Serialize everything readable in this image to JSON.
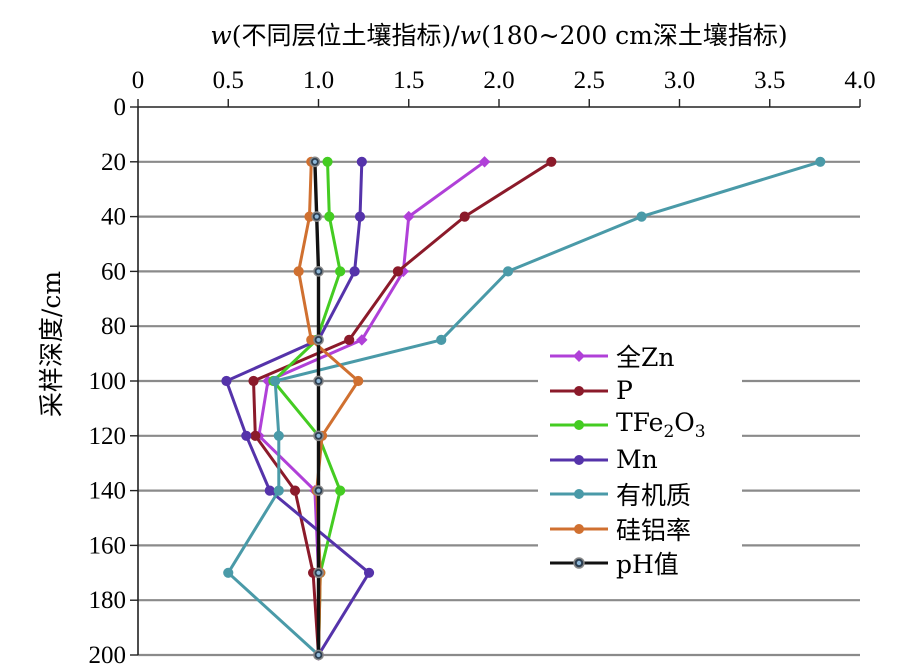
{
  "title": {
    "w1": "w",
    "mid": "(不同层位土壤指标)/",
    "w2": "w",
    "tail": "(180~200 cm深土壤指标)"
  },
  "legend": [
    {
      "label": "全Zn"
    },
    {
      "label": "P"
    },
    {
      "label": "TFe",
      "sub1": "2",
      "mid": "O",
      "sub2": "3"
    },
    {
      "label": "Mn"
    },
    {
      "label": "有机质"
    },
    {
      "label": "硅铝率"
    },
    {
      "label": "pH值"
    }
  ],
  "chart_data": {
    "type": "line",
    "orientation": "depth-profile",
    "title": "w(不同层位土壤指标)/w(180~200 cm深土壤指标)",
    "xlabel": "",
    "ylabel": "采样深度/cm",
    "xlim": [
      0,
      4.0
    ],
    "ylim": [
      200,
      0
    ],
    "xticks": [
      "0",
      "0.5",
      "1.0",
      "1.5",
      "2.0",
      "2.5",
      "3.0",
      "3.5",
      "4.0"
    ],
    "yticks": [
      "0",
      "20",
      "40",
      "60",
      "80",
      "100",
      "120",
      "140",
      "160",
      "180",
      "200"
    ],
    "x_axis_position": "top",
    "grid": "horizontal",
    "legend_position": "bottom-right",
    "series": [
      {
        "name": "全Zn",
        "color": "#b040d8",
        "marker": "diamond",
        "points": [
          [
            1.92,
            20
          ],
          [
            1.5,
            40
          ],
          [
            1.47,
            60
          ],
          [
            1.24,
            85
          ],
          [
            0.72,
            100
          ],
          [
            0.67,
            120
          ],
          [
            0.98,
            140
          ],
          [
            1.0,
            170
          ],
          [
            1.0,
            200
          ]
        ]
      },
      {
        "name": "P",
        "color": "#8b1a2a",
        "marker": "circle",
        "points": [
          [
            2.29,
            20
          ],
          [
            1.81,
            40
          ],
          [
            1.44,
            60
          ],
          [
            1.17,
            85
          ],
          [
            0.64,
            100
          ],
          [
            0.65,
            120
          ],
          [
            0.87,
            140
          ],
          [
            0.97,
            170
          ],
          [
            1.0,
            200
          ]
        ]
      },
      {
        "name": "TFe2O3",
        "color": "#44cc22",
        "marker": "circle",
        "points": [
          [
            1.05,
            20
          ],
          [
            1.06,
            40
          ],
          [
            1.12,
            60
          ],
          [
            0.99,
            85
          ],
          [
            0.75,
            100
          ],
          [
            1.0,
            120
          ],
          [
            1.12,
            140
          ],
          [
            1.01,
            170
          ],
          [
            1.0,
            200
          ]
        ]
      },
      {
        "name": "Mn",
        "color": "#5533aa",
        "marker": "circle",
        "points": [
          [
            1.24,
            20
          ],
          [
            1.23,
            40
          ],
          [
            1.2,
            60
          ],
          [
            1.0,
            85
          ],
          [
            0.49,
            100
          ],
          [
            0.6,
            120
          ],
          [
            0.73,
            140
          ],
          [
            1.28,
            170
          ],
          [
            1.0,
            200
          ]
        ]
      },
      {
        "name": "有机质",
        "color": "#4a9aa8",
        "marker": "circle",
        "points": [
          [
            3.78,
            20
          ],
          [
            2.79,
            40
          ],
          [
            2.05,
            60
          ],
          [
            1.68,
            85
          ],
          [
            0.76,
            100
          ],
          [
            0.78,
            120
          ],
          [
            0.78,
            140
          ],
          [
            0.5,
            170
          ],
          [
            1.0,
            200
          ]
        ]
      },
      {
        "name": "硅铝率",
        "color": "#d07030",
        "marker": "circle",
        "points": [
          [
            0.96,
            20
          ],
          [
            0.95,
            40
          ],
          [
            0.89,
            60
          ],
          [
            0.96,
            85
          ],
          [
            1.22,
            100
          ],
          [
            1.02,
            120
          ],
          [
            0.99,
            140
          ],
          [
            1.01,
            170
          ],
          [
            1.0,
            200
          ]
        ]
      },
      {
        "name": "pH值",
        "color": "#111111",
        "marker": "circle-dot",
        "points": [
          [
            0.98,
            20
          ],
          [
            0.99,
            40
          ],
          [
            1.0,
            60
          ],
          [
            1.0,
            85
          ],
          [
            1.0,
            100
          ],
          [
            1.0,
            120
          ],
          [
            1.0,
            140
          ],
          [
            1.0,
            170
          ],
          [
            1.0,
            200
          ]
        ]
      }
    ]
  }
}
